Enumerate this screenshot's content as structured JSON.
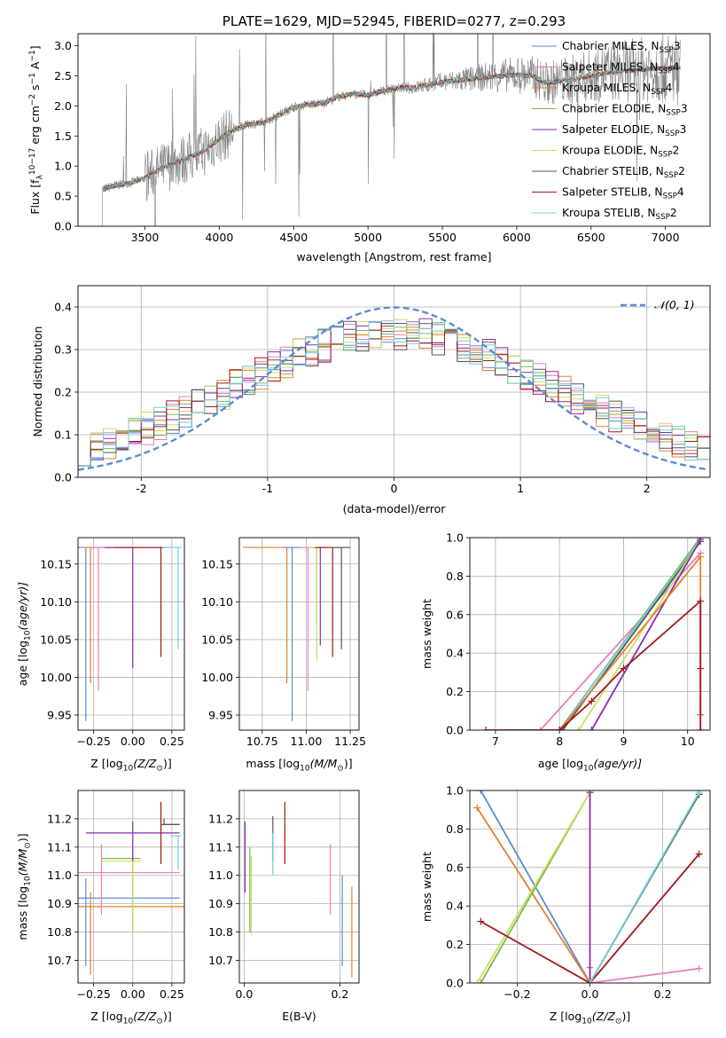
{
  "colors": {
    "Chabrier MILES": "#5b8bd8",
    "Salpeter MILES": "#e87fb8",
    "Kroupa MILES": "#e5802a",
    "Chabrier ELODIE": "#7cb84a",
    "Salpeter ELODIE": "#8a2bb0",
    "Kroupa ELODIE": "#c8e060",
    "Chabrier STELIB": "#555555",
    "Salpeter STELIB": "#a01818",
    "Kroupa STELIB": "#70d0d8",
    "data": "#7f7f7f"
  },
  "chart_data": [
    {
      "id": "spectrum",
      "type": "line",
      "title": "PLATE=1629, MJD=52945, FIBERID=0277, z=0.293",
      "xlabel": "wavelength [Angstrom, rest frame]",
      "ylabel_parts": [
        "Flux [f",
        "λ",
        "10",
        "−17",
        " erg cm",
        "−2",
        " s",
        "−1",
        " A",
        "−1",
        "]"
      ],
      "xlim": [
        3050,
        7300
      ],
      "ylim": [
        0,
        3.2
      ],
      "xticks": [
        3500,
        4000,
        4500,
        5000,
        5500,
        6000,
        6500,
        7000
      ],
      "yticks": [
        0.0,
        0.5,
        1.0,
        1.5,
        2.0,
        2.5,
        3.0
      ],
      "data_range": [
        3200,
        7100
      ],
      "continuum": [
        [
          3200,
          0.6
        ],
        [
          3300,
          0.68
        ],
        [
          3400,
          0.72
        ],
        [
          3500,
          0.8
        ],
        [
          3600,
          0.95
        ],
        [
          3700,
          1.05
        ],
        [
          3800,
          1.15
        ],
        [
          3900,
          1.25
        ],
        [
          4000,
          1.45
        ],
        [
          4100,
          1.6
        ],
        [
          4200,
          1.7
        ],
        [
          4300,
          1.72
        ],
        [
          4400,
          1.85
        ],
        [
          4500,
          1.98
        ],
        [
          4600,
          2.02
        ],
        [
          4700,
          2.05
        ],
        [
          4800,
          2.15
        ],
        [
          4900,
          2.2
        ],
        [
          5000,
          2.18
        ],
        [
          5100,
          2.25
        ],
        [
          5200,
          2.3
        ],
        [
          5300,
          2.3
        ],
        [
          5400,
          2.35
        ],
        [
          5500,
          2.4
        ],
        [
          5600,
          2.42
        ],
        [
          5700,
          2.45
        ],
        [
          5800,
          2.48
        ],
        [
          5900,
          2.5
        ],
        [
          6000,
          2.52
        ],
        [
          6100,
          2.5
        ],
        [
          6200,
          2.38
        ],
        [
          6300,
          2.42
        ],
        [
          6400,
          2.45
        ],
        [
          6500,
          2.5
        ],
        [
          6600,
          2.55
        ],
        [
          6700,
          2.58
        ],
        [
          6800,
          2.6
        ],
        [
          6900,
          2.62
        ],
        [
          7000,
          2.63
        ],
        [
          7100,
          2.64
        ]
      ],
      "legend": [
        {
          "name": "Chabrier MILES",
          "n": "3"
        },
        {
          "name": "Salpeter MILES",
          "n": "4"
        },
        {
          "name": "Kroupa MILES",
          "n": "4"
        },
        {
          "name": "Chabrier ELODIE",
          "n": "3"
        },
        {
          "name": "Salpeter ELODIE",
          "n": "3"
        },
        {
          "name": "Kroupa ELODIE",
          "n": "2"
        },
        {
          "name": "Chabrier STELIB",
          "n": "2"
        },
        {
          "name": "Salpeter STELIB",
          "n": "4"
        },
        {
          "name": "Kroupa STELIB",
          "n": "2"
        }
      ],
      "legend_sub": "SSP",
      "legend_prefix": "N",
      "legend_placement": "upper-right"
    },
    {
      "id": "residuals",
      "type": "histogram",
      "xlabel": "(data-model)/error",
      "ylabel": "Normed distribution",
      "xlim": [
        -2.5,
        2.5
      ],
      "ylim": [
        0,
        0.45
      ],
      "xticks": [
        -2,
        -1,
        0,
        1,
        2
      ],
      "yticks": [
        0.0,
        0.1,
        0.2,
        0.3,
        0.4
      ],
      "grid": true,
      "legend": "𝒩(0, 1)",
      "legend_placement": "upper-right",
      "gaussian": {
        "mu": 0,
        "sigma": 1
      }
    },
    {
      "id": "age-vs-Z",
      "type": "errorbar",
      "xlabel_parts": [
        "Z [log",
        "10",
        "(Z/Z",
        "⊙",
        ")]"
      ],
      "ylabel_parts": [
        "age  [log",
        "10",
        "(age/yr)]"
      ],
      "xlim": [
        -0.35,
        0.33
      ],
      "ylim": [
        9.93,
        10.185
      ],
      "xticks": [
        -0.25,
        0.0,
        0.25
      ],
      "xticklabels": [
        "−0.25",
        "0.00",
        "0.25"
      ],
      "yticks": [
        9.95,
        10.0,
        10.05,
        10.1,
        10.15
      ],
      "yticklabels": [
        "9.95",
        "10.00",
        "10.05",
        "10.10",
        "10.15"
      ],
      "grid": true,
      "points": [
        {
          "model": "Chabrier MILES",
          "x": -0.3,
          "y": 10.172,
          "xerr": [
            0.3,
            0.3
          ],
          "yerr": [
            0.23,
            0
          ]
        },
        {
          "model": "Kroupa MILES",
          "x": -0.27,
          "y": 10.172,
          "xerr": [
            0.05,
            0.45
          ],
          "yerr": [
            0.18,
            0
          ]
        },
        {
          "model": "Salpeter MILES",
          "x": -0.22,
          "y": 10.172,
          "xerr": [
            0.05,
            0.3
          ],
          "yerr": [
            0.19,
            0
          ]
        },
        {
          "model": "Salpeter ELODIE",
          "x": 0.0,
          "y": 10.172,
          "xerr": [
            0.18,
            0.2
          ],
          "yerr": [
            0.16,
            0
          ]
        },
        {
          "model": "Salpeter STELIB",
          "x": 0.18,
          "y": 10.172,
          "xerr": [
            0.3,
            0.05
          ],
          "yerr": [
            0.145,
            0
          ]
        },
        {
          "model": "Kroupa STELIB",
          "x": 0.29,
          "y": 10.172,
          "xerr": [
            0.1,
            0.02
          ],
          "yerr": [
            0.135,
            0
          ]
        }
      ]
    },
    {
      "id": "age-vs-mass",
      "type": "errorbar",
      "xlabel_parts": [
        "mass [log",
        "10",
        "(M/M",
        "⊙",
        ")]"
      ],
      "xlim": [
        10.62,
        11.3
      ],
      "ylim": [
        9.93,
        10.185
      ],
      "xticks": [
        10.75,
        11.0,
        11.25
      ],
      "xticklabels": [
        "10.75",
        "11.00",
        "11.25"
      ],
      "yticks": [
        9.95,
        10.0,
        10.05,
        10.1,
        10.15
      ],
      "yticklabels": [
        "9.95",
        "10.00",
        "10.05",
        "10.10",
        "10.15"
      ],
      "grid": true,
      "points": [
        {
          "model": "Kroupa MILES",
          "x": 10.89,
          "y": 10.172,
          "xerr": [
            0.25,
            0.15
          ],
          "yerr": [
            0.18,
            0
          ]
        },
        {
          "model": "Chabrier MILES",
          "x": 10.92,
          "y": 10.172,
          "xerr": [
            0.05,
            0.1
          ],
          "yerr": [
            0.23,
            0
          ]
        },
        {
          "model": "Salpeter MILES",
          "x": 11.01,
          "y": 10.172,
          "xerr": [
            0.05,
            0.1
          ],
          "yerr": [
            0.19,
            0
          ]
        },
        {
          "model": "Chabrier ELODIE",
          "x": 11.06,
          "y": 10.172,
          "xerr": [
            0.05,
            0.05
          ],
          "yerr": [
            0.1,
            0
          ]
        },
        {
          "model": "Salpeter ELODIE",
          "x": 11.08,
          "y": 10.172,
          "xerr": [
            0.05,
            0.05
          ],
          "yerr": [
            0.13,
            0
          ]
        },
        {
          "model": "Kroupa ELODIE",
          "x": 11.06,
          "y": 10.172,
          "xerr": [
            0.05,
            0.05
          ],
          "yerr": [
            0.15,
            0
          ]
        },
        {
          "model": "Salpeter STELIB",
          "x": 11.15,
          "y": 10.172,
          "xerr": [
            0.1,
            0.1
          ],
          "yerr": [
            0.145,
            0
          ]
        },
        {
          "model": "Chabrier STELIB",
          "x": 11.2,
          "y": 10.172,
          "xerr": [
            0.05,
            0.05
          ],
          "yerr": [
            0.135,
            0
          ]
        }
      ]
    },
    {
      "id": "weight-vs-age",
      "type": "line",
      "xlabel_parts": [
        "age  [log",
        "10",
        "(age/yr)]"
      ],
      "ylabel": "mass weight",
      "xlim": [
        6.6,
        10.35
      ],
      "ylim": [
        0,
        1.0
      ],
      "xticks": [
        7,
        8,
        9,
        10
      ],
      "yticks": [
        0.0,
        0.2,
        0.4,
        0.6,
        0.8,
        1.0
      ],
      "yticklabels": [
        "0.0",
        "0.2",
        "0.4",
        "0.6",
        "0.8",
        "1.0"
      ],
      "grid": true,
      "series": [
        {
          "model": "Salpeter MILES",
          "x": [
            7.7,
            10.2
          ],
          "y": [
            0.0,
            0.92
          ]
        },
        {
          "model": "Chabrier MILES",
          "x": [
            8.0,
            10.2
          ],
          "y": [
            0.0,
            1.0
          ]
        },
        {
          "model": "Chabrier ELODIE",
          "x": [
            8.0,
            10.2
          ],
          "y": [
            0.0,
            1.0
          ]
        },
        {
          "model": "Kroupa STELIB",
          "x": [
            8.0,
            10.2
          ],
          "y": [
            0.0,
            0.99
          ]
        },
        {
          "model": "Chabrier STELIB",
          "x": [
            8.05,
            10.2
          ],
          "y": [
            0.0,
            0.98
          ]
        },
        {
          "model": "Kroupa ELODIE",
          "x": [
            8.3,
            10.2
          ],
          "y": [
            0.0,
            0.99
          ]
        },
        {
          "model": "Salpeter ELODIE",
          "x": [
            8.5,
            10.2
          ],
          "y": [
            0.0,
            0.99
          ]
        },
        {
          "model": "Kroupa MILES",
          "x": [
            8.0,
            10.2,
            10.2
          ],
          "y": [
            0.0,
            0.9,
            0.08
          ]
        },
        {
          "model": "Salpeter STELIB",
          "x": [
            6.85,
            8.0,
            8.5,
            9.0,
            10.2,
            10.2,
            10.2
          ],
          "y": [
            0.0,
            0.0,
            0.15,
            0.32,
            0.67,
            0.32,
            0.0
          ]
        }
      ]
    },
    {
      "id": "mass-vs-Z",
      "type": "errorbar",
      "xlabel_parts": [
        "Z [log",
        "10",
        "(Z/Z",
        "⊙",
        ")]"
      ],
      "ylabel_parts": [
        "mass [log",
        "10",
        "(M/M",
        "⊙",
        ")]"
      ],
      "xlim": [
        -0.35,
        0.33
      ],
      "ylim": [
        10.62,
        11.3
      ],
      "xticks": [
        -0.25,
        0.0,
        0.25
      ],
      "xticklabels": [
        "−0.25",
        "0.00",
        "0.25"
      ],
      "yticks": [
        10.7,
        10.8,
        10.9,
        11.0,
        11.1,
        11.2
      ],
      "yticklabels": [
        "10.7",
        "10.8",
        "10.9",
        "11.0",
        "11.1",
        "11.2"
      ],
      "grid": true,
      "points": [
        {
          "model": "Chabrier MILES",
          "x": -0.3,
          "y": 10.92,
          "xerr": [
            0.05,
            0.6
          ],
          "yerr": [
            0.24,
            0.07
          ]
        },
        {
          "model": "Kroupa MILES",
          "x": -0.27,
          "y": 10.89,
          "xerr": [
            0.1,
            0.6
          ],
          "yerr": [
            0.24,
            0.05
          ]
        },
        {
          "model": "Salpeter MILES",
          "x": -0.2,
          "y": 11.01,
          "xerr": [
            0.15,
            0.5
          ],
          "yerr": [
            0.15,
            0.1
          ]
        },
        {
          "model": "Chabrier ELODIE",
          "x": 0.0,
          "y": 11.06,
          "xerr": [
            0.2,
            0.05
          ],
          "yerr": [
            0.26,
            0.0
          ]
        },
        {
          "model": "Kroupa ELODIE",
          "x": 0.0,
          "y": 11.05,
          "xerr": [
            0.2,
            0.05
          ],
          "yerr": [
            0.25,
            0.0
          ]
        },
        {
          "model": "Salpeter ELODIE",
          "x": 0.0,
          "y": 11.15,
          "xerr": [
            0.3,
            0.3
          ],
          "yerr": [
            0.1,
            0.04
          ]
        },
        {
          "model": "Salpeter STELIB",
          "x": 0.18,
          "y": 11.18,
          "xerr": [
            0.0,
            0.12
          ],
          "yerr": [
            0.14,
            0.08
          ]
        },
        {
          "model": "Chabrier STELIB",
          "x": 0.2,
          "y": 11.18,
          "xerr": [
            0.0,
            0.1
          ],
          "yerr": [
            0.0,
            0.02
          ]
        },
        {
          "model": "Kroupa STELIB",
          "x": 0.29,
          "y": 11.14,
          "xerr": [
            0.05,
            0.02
          ],
          "yerr": [
            0.12,
            0.0
          ]
        }
      ]
    },
    {
      "id": "mass-vs-EBV",
      "type": "errorbar",
      "xlabel": "E(B-V)",
      "xlim": [
        -0.01,
        0.24
      ],
      "ylim": [
        10.62,
        11.3
      ],
      "xticks": [
        0.0,
        0.2
      ],
      "xticklabels": [
        "0.0",
        "0.2"
      ],
      "yticks": [
        10.7,
        10.8,
        10.9,
        11.0,
        11.1,
        11.2
      ],
      "yticklabels": [
        "10.7",
        "10.8",
        "10.9",
        "11.0",
        "11.1",
        "11.2"
      ],
      "grid": true,
      "points": [
        {
          "model": "Salpeter ELODIE",
          "x": 0.002,
          "y": 11.06,
          "xerr": [
            0,
            0
          ],
          "yerr": [
            0.12,
            0.13
          ]
        },
        {
          "model": "Chabrier ELODIE",
          "x": 0.012,
          "y": 10.95,
          "xerr": [
            0,
            0
          ],
          "yerr": [
            0.15,
            0.15
          ]
        },
        {
          "model": "Kroupa ELODIE",
          "x": 0.015,
          "y": 10.95,
          "xerr": [
            0,
            0
          ],
          "yerr": [
            0.16,
            0.12
          ]
        },
        {
          "model": "Chabrier STELIB",
          "x": 0.06,
          "y": 11.13,
          "xerr": [
            0,
            0
          ],
          "yerr": [
            0.08,
            0.08
          ]
        },
        {
          "model": "Kroupa STELIB",
          "x": 0.06,
          "y": 11.08,
          "xerr": [
            0,
            0
          ],
          "yerr": [
            0.08,
            0.07
          ]
        },
        {
          "model": "Salpeter STELIB",
          "x": 0.085,
          "y": 11.15,
          "xerr": [
            0,
            0
          ],
          "yerr": [
            0.11,
            0.11
          ]
        },
        {
          "model": "Salpeter MILES",
          "x": 0.18,
          "y": 10.98,
          "xerr": [
            0,
            0
          ],
          "yerr": [
            0.12,
            0.13
          ]
        },
        {
          "model": "Chabrier MILES",
          "x": 0.205,
          "y": 10.84,
          "xerr": [
            0,
            0
          ],
          "yerr": [
            0.16,
            0.16
          ]
        },
        {
          "model": "Kroupa MILES",
          "x": 0.225,
          "y": 10.8,
          "xerr": [
            0,
            0
          ],
          "yerr": [
            0.16,
            0.16
          ]
        }
      ]
    },
    {
      "id": "weight-vs-Z",
      "type": "line",
      "xlabel_parts": [
        "Z [log",
        "10",
        "(Z/Z",
        "⊙",
        ")]"
      ],
      "ylabel": "mass weight",
      "xlim": [
        -0.33,
        0.33
      ],
      "ylim": [
        0,
        1.0
      ],
      "xticks": [
        -0.2,
        0.0,
        0.2
      ],
      "xticklabels": [
        "−0.2",
        "0.0",
        "0.2"
      ],
      "yticks": [
        0.0,
        0.2,
        0.4,
        0.6,
        0.8,
        1.0
      ],
      "yticklabels": [
        "0.0",
        "0.2",
        "0.4",
        "0.6",
        "0.8",
        "1.0"
      ],
      "grid": true,
      "series": [
        {
          "model": "Chabrier MILES",
          "x": [
            -0.3,
            0.0
          ],
          "y": [
            1.0,
            0.0
          ]
        },
        {
          "model": "Kroupa MILES",
          "x": [
            -0.31,
            0.0,
            0.0
          ],
          "y": [
            0.91,
            0.0,
            0.08
          ]
        },
        {
          "model": "Salpeter MILES",
          "x": [
            0.0,
            0.3
          ],
          "y": [
            0.0,
            0.075
          ]
        },
        {
          "model": "Chabrier ELODIE",
          "x": [
            -0.3,
            0.0
          ],
          "y": [
            0.0,
            0.99
          ]
        },
        {
          "model": "Kroupa ELODIE",
          "x": [
            -0.31,
            0.0
          ],
          "y": [
            0.0,
            0.99
          ]
        },
        {
          "model": "Salpeter ELODIE",
          "x": [
            0.0,
            0.0
          ],
          "y": [
            0.0,
            0.99
          ]
        },
        {
          "model": "Salpeter STELIB",
          "x": [
            -0.3,
            0.0,
            0.3
          ],
          "y": [
            0.32,
            0.0,
            0.67
          ]
        },
        {
          "model": "Chabrier STELIB",
          "x": [
            0.0,
            0.3
          ],
          "y": [
            0.0,
            0.98
          ]
        },
        {
          "model": "Kroupa STELIB",
          "x": [
            0.0,
            0.3
          ],
          "y": [
            0.0,
            0.99
          ]
        }
      ]
    }
  ]
}
